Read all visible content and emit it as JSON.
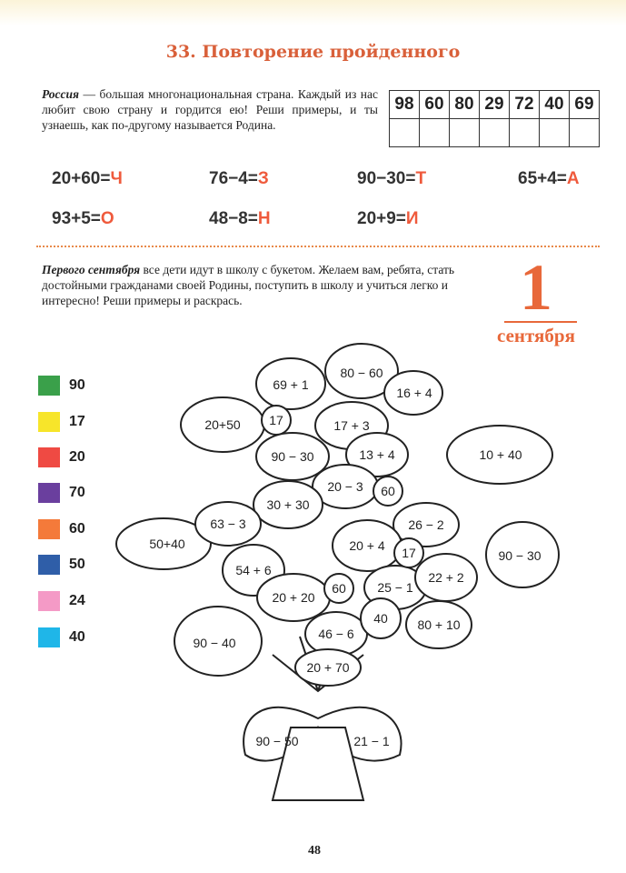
{
  "title": "33. Повторение пройденного",
  "section1": {
    "lead": "Россия",
    "text": " — большая многонациональная страна. Каждый из нас любит свою страну и гордится ею! Реши примеры, и ты узнаешь, как по-другому называется Родина."
  },
  "code_numbers": [
    "98",
    "60",
    "80",
    "29",
    "72",
    "40",
    "69"
  ],
  "examples": [
    {
      "expr": "20+60=",
      "letter": "Ч"
    },
    {
      "expr": "76−4=",
      "letter": "З"
    },
    {
      "expr": "90−30=",
      "letter": "Т"
    },
    {
      "expr": "65+4=",
      "letter": "А"
    },
    {
      "expr": "93+5=",
      "letter": "О"
    },
    {
      "expr": "48−8=",
      "letter": "Н"
    },
    {
      "expr": "20+9=",
      "letter": "И"
    }
  ],
  "section2": {
    "lead": "Первого сентября",
    "text": " все дети идут в школу с букетом. Желаем вам, ребята, стать достойными гражданами своей Родины, поступить в школу и учиться легко и интересно! Реши примеры и раскрась."
  },
  "date": {
    "day": "1",
    "month": "сентября"
  },
  "legend": [
    {
      "value": "90",
      "color": "#3aa04a"
    },
    {
      "value": "17",
      "color": "#f7e52a"
    },
    {
      "value": "20",
      "color": "#ef4a43"
    },
    {
      "value": "70",
      "color": "#6a3f9e"
    },
    {
      "value": "60",
      "color": "#f47a3a"
    },
    {
      "value": "50",
      "color": "#2f5ea8"
    },
    {
      "value": "24",
      "color": "#f49ac6"
    },
    {
      "value": "40",
      "color": "#1fb6e8"
    }
  ],
  "bouquet": [
    "69 + 1",
    "80 − 60",
    "16 + 4",
    "17",
    "20+50",
    "17 + 3",
    "90 − 30",
    "13 + 4",
    "10 + 40",
    "20 − 3",
    "60",
    "30 + 30",
    "63 − 3",
    "26 − 2",
    "50+40",
    "20 + 4",
    "17",
    "90 − 30",
    "54 + 6",
    "25 − 1",
    "22 + 2",
    "20 + 20",
    "60",
    "46 − 6",
    "40",
    "80 + 10",
    "90 − 40",
    "20 + 70",
    "90 − 50",
    "21 − 1"
  ],
  "page_number": "48"
}
